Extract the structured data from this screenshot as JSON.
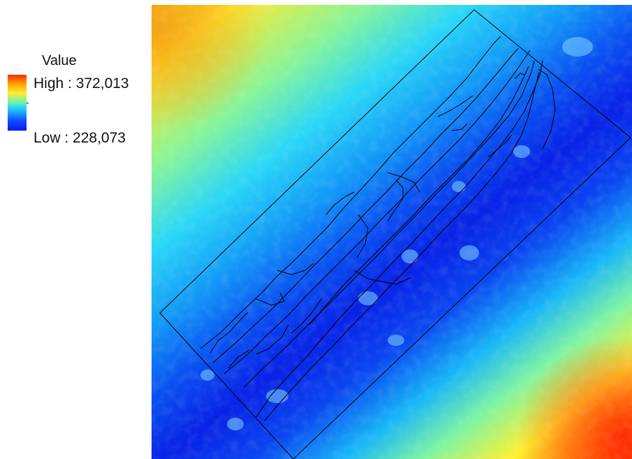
{
  "legend": {
    "title": "Value",
    "high_label": "High : 372,013",
    "low_label": "Low : 228,073",
    "high_color": "#ff2a00",
    "mid_color": "#22c6ff",
    "low_color": "#0a1aee"
  },
  "map": {
    "raster": "elevation-like value surface rising from a dark-blue diagonal valley to red/orange corners",
    "overlay": "study-area rectangle with mapped channel/unit polygon outlines"
  }
}
